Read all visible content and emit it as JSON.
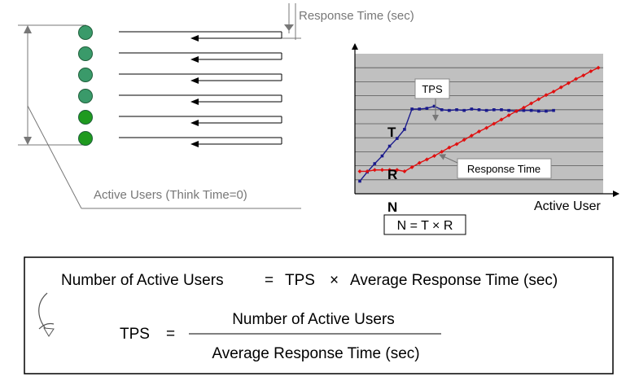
{
  "top_left": {
    "response_time_label": "Response Time (sec)",
    "active_users_label": "Active Users (Think Time=0)",
    "user_count": 6,
    "user_colors": [
      "#3a9a6a",
      "#3a9a6a",
      "#3a9a6a",
      "#3a9a6a",
      "#1f9a1f",
      "#1f9a1f"
    ]
  },
  "chart_data": {
    "type": "line",
    "title": "",
    "xlabel": "Active User",
    "ylabel": "",
    "x_marker_label": "N",
    "series": [
      {
        "name": "TPS",
        "letter": "T",
        "color": "#1a1a8c",
        "values": [
          0.9,
          1.55,
          2.15,
          2.7,
          3.4,
          3.95,
          4.6,
          6.05,
          6.05,
          6.1,
          6.25,
          6.0,
          5.95,
          6.0,
          5.95,
          6.05,
          6.0,
          5.95,
          6.0,
          6.0,
          5.95,
          5.9,
          5.95,
          5.95,
          5.9,
          5.9,
          5.95
        ]
      },
      {
        "name": "Response Time",
        "letter": "R",
        "color": "#e01010",
        "values": [
          1.6,
          1.6,
          1.7,
          1.7,
          1.7,
          1.7,
          1.6,
          1.9,
          2.2,
          2.45,
          2.7,
          3.0,
          3.3,
          3.55,
          3.85,
          4.15,
          4.45,
          4.7,
          5.0,
          5.3,
          5.6,
          5.9,
          6.15,
          6.45,
          6.75,
          7.05,
          7.3,
          7.6,
          7.9,
          8.2,
          8.45,
          8.75,
          9.0
        ]
      }
    ],
    "ylim": [
      0,
      10
    ],
    "callout_tps": "TPS",
    "callout_response_time": "Response Time",
    "formula_box": "N = T × R"
  },
  "formula": {
    "lhs": "Number of Active Users",
    "equals": "=",
    "rhs_tps": "TPS",
    "times": "×",
    "rhs_avg": "Average Response Time (sec)",
    "tps_label": "TPS",
    "eq2": "=",
    "numerator": "Number of Active Users",
    "denominator": "Average Response Time (sec)"
  }
}
